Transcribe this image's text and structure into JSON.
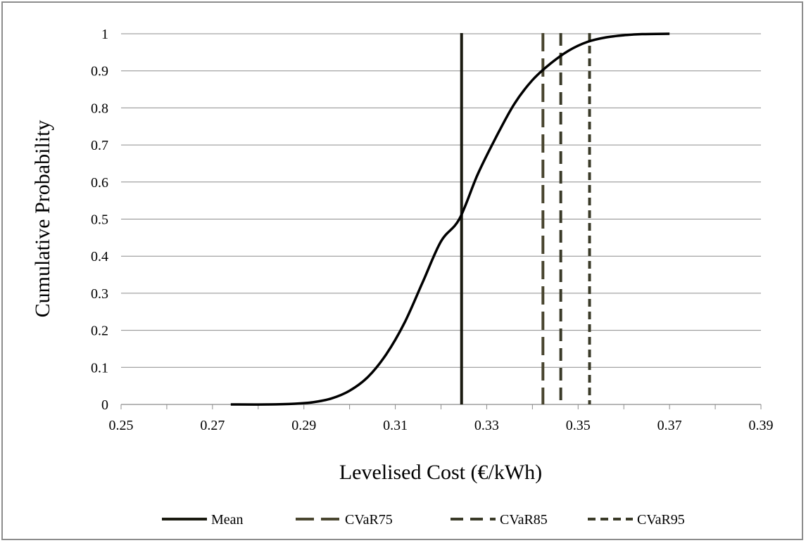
{
  "chart_data": {
    "type": "line",
    "title": "",
    "xlabel": "Levelised Cost (€/kWh)",
    "ylabel": "Cumulative  Probability",
    "xlim": [
      0.25,
      0.39
    ],
    "ylim": [
      0,
      1
    ],
    "x_ticks": [
      "0.25",
      "0.27",
      "0.29",
      "0.31",
      "0.33",
      "0.35",
      "0.37",
      "0.39"
    ],
    "y_ticks": [
      "0",
      "0.1",
      "0.2",
      "0.3",
      "0.4",
      "0.5",
      "0.6",
      "0.7",
      "0.8",
      "0.9",
      "1"
    ],
    "grid": "horizontal",
    "legend_position": "bottom",
    "series": [
      {
        "x": [
          0.274,
          0.282,
          0.288,
          0.292,
          0.296,
          0.3,
          0.304,
          0.308,
          0.312,
          0.316,
          0.32,
          0.324,
          0.328,
          0.332,
          0.336,
          0.34,
          0.344,
          0.348,
          0.352,
          0.356,
          0.36,
          0.364,
          0.37
        ],
        "y": [
          0.0,
          0.0,
          0.002,
          0.006,
          0.016,
          0.037,
          0.074,
          0.135,
          0.22,
          0.33,
          0.44,
          0.5,
          0.62,
          0.72,
          0.81,
          0.875,
          0.92,
          0.955,
          0.978,
          0.99,
          0.996,
          0.999,
          1.0
        ]
      }
    ],
    "vlines": [
      {
        "name": "Mean",
        "x": 0.3245,
        "style": "solid",
        "color": "#1a1a10"
      },
      {
        "name": "CVaR75",
        "x": 0.3423,
        "style": "long-dash",
        "color": "#4a4630"
      },
      {
        "name": "CVaR85",
        "x": 0.3462,
        "style": "dash",
        "color": "#3a3a28"
      },
      {
        "name": "CVaR95",
        "x": 0.3525,
        "style": "short-dash",
        "color": "#3a3a28"
      }
    ],
    "colors": {
      "curve": "#000000",
      "grid": "#8c8c8c",
      "frame": "#8c8c8c"
    }
  }
}
